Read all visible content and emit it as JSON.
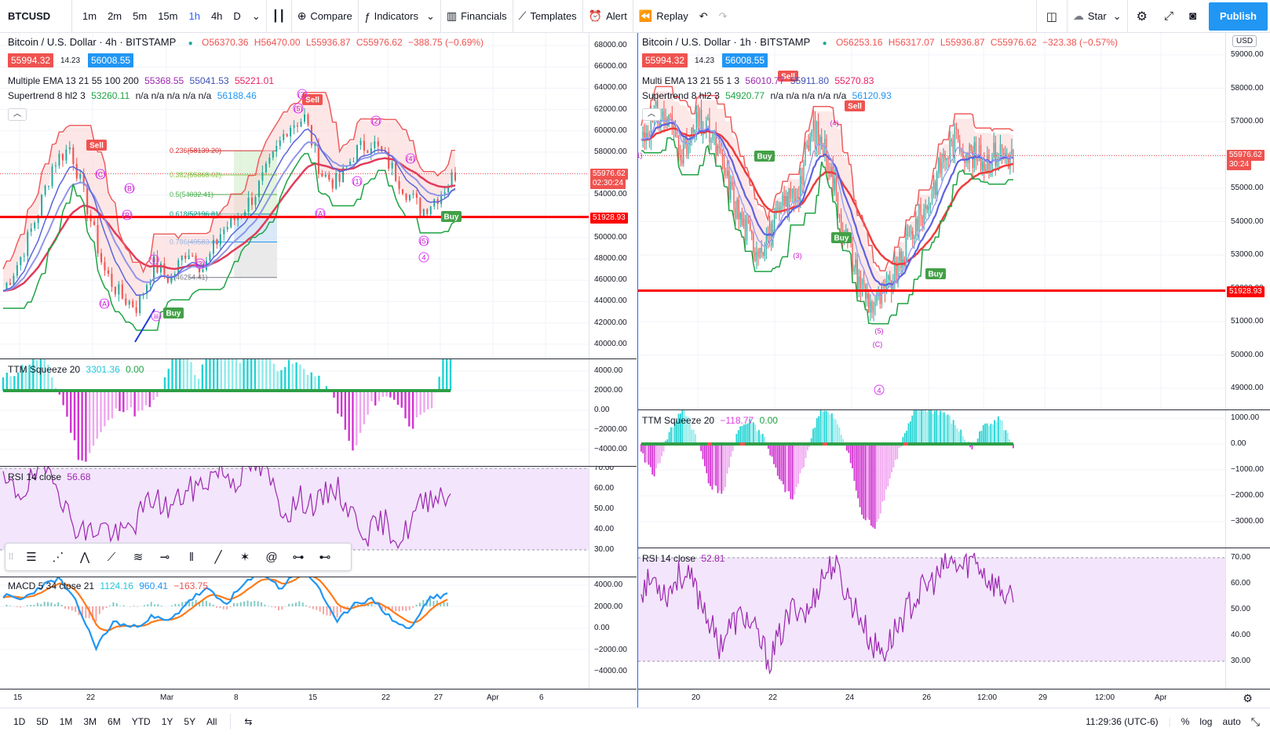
{
  "toolbar": {
    "symbol": "BTCUSD",
    "intervals": [
      "1m",
      "2m",
      "5m",
      "15m",
      "1h",
      "4h",
      "D"
    ],
    "active_interval": "1h",
    "compare": "Compare",
    "indicators": "Indicators",
    "financials": "Financials",
    "templates": "Templates",
    "alert": "Alert",
    "replay": "Replay",
    "star": "Star",
    "publish": "Publish"
  },
  "left_chart": {
    "title": "Bitcoin / U.S. Dollar · 4h · BITSTAMP",
    "ohlc": {
      "o": "O56370.36",
      "h": "H56470.00",
      "l": "L55936.87",
      "c": "C55976.62",
      "chg": "−388.75 (−0.69%)"
    },
    "bid": "55994.32",
    "spread": "14.23",
    "ask": "56008.55",
    "ema_legend": {
      "name": "Multiple EMA 13 21 55 100 200",
      "v1": "55368.55",
      "v2": "55041.53",
      "v3": "55221.01"
    },
    "st_legend": {
      "name": "Supertrend 8 hl2 3",
      "v1": "53260.11",
      "na": "n/a n/a n/a n/a n/a",
      "v2": "56188.46"
    },
    "price_axis": [
      "68000.00",
      "66000.00",
      "64000.00",
      "62000.00",
      "60000.00",
      "58000.00",
      "56000.00",
      "54000.00",
      "52000.00",
      "50000.00",
      "48000.00",
      "46000.00",
      "44000.00",
      "42000.00",
      "40000.00"
    ],
    "last_price": "55976.62",
    "countdown": "02:30:24",
    "hline_price": "51928.93",
    "fib": [
      "0.236(58139.20)",
      "0.382(55868.02)",
      "0.5(54032.41)",
      "0.618(52196.81)",
      "0.786(49583.40)",
      "1(46254.41)"
    ],
    "sell_label": "Sell",
    "buy_label": "Buy",
    "wave_labels": [
      "(C)",
      "(B)",
      "(A)",
      "(3)",
      "(B)",
      "(2)",
      "(4)",
      "(5)",
      "(1)",
      "(A)",
      "(3)",
      "ii",
      "iii",
      "(5)",
      "4"
    ],
    "ttm": {
      "name": "TTM Squeeze 20",
      "v1": "3301.36",
      "v2": "0.00",
      "axis": [
        "4000.00",
        "2000.00",
        "0.00",
        "−2000.00",
        "−4000.00"
      ]
    },
    "rsi": {
      "name": "RSI 14 close",
      "v1": "56.68",
      "axis": [
        "70.00",
        "60.00",
        "50.00",
        "40.00",
        "30.00"
      ]
    },
    "macd": {
      "name": "MACD 5 34 close 21",
      "v1": "1124.16",
      "v2": "960.41",
      "v3": "−163.75",
      "axis": [
        "4000.00",
        "2000.00",
        "0.00",
        "−2000.00",
        "−4000.00"
      ]
    },
    "time_axis": [
      "15",
      "22",
      "Mar",
      "8",
      "15",
      "22",
      "27",
      "Apr",
      "6"
    ]
  },
  "right_chart": {
    "title": "Bitcoin / U.S. Dollar · 1h · BITSTAMP",
    "ohlc": {
      "o": "O56253.16",
      "h": "H56317.07",
      "l": "L55936.87",
      "c": "C55976.62",
      "chg": "−323.38 (−0.57%)"
    },
    "bid": "55994.32",
    "spread": "14.23",
    "ask": "56008.55",
    "currency": "USD",
    "ema_legend": {
      "name": "Multi EMA 13 21 55 1 3",
      "v1": "56010.77",
      "v2": "55911.80",
      "v3": "55270.83"
    },
    "st_legend": {
      "name": "Supertrend 8 hl2 3",
      "v1": "54920.77",
      "na": "n/a n/a n/a n/a n/a",
      "v2": "56120.93"
    },
    "price_axis": [
      "59000.00",
      "58000.00",
      "57000.00",
      "56000.00",
      "55000.00",
      "54000.00",
      "53000.00",
      "52000.00",
      "51000.00",
      "50000.00",
      "49000.00"
    ],
    "last_price": "55976.62",
    "countdown": "30:24",
    "hline_price": "51928.93",
    "sell_label": "Sell",
    "buy_label": "Buy",
    "wave_labels": [
      "(1)",
      "(4)",
      "(3)",
      "(5)",
      "(C)",
      "4"
    ],
    "ttm": {
      "name": "TTM Squeeze 20",
      "v1": "−118.77",
      "v2": "0.00",
      "axis": [
        "1000.00",
        "0.00",
        "−1000.00",
        "−2000.00",
        "−3000.00"
      ]
    },
    "rsi": {
      "name": "RSI 14 close",
      "v1": "52.81",
      "axis": [
        "70.00",
        "60.00",
        "50.00",
        "40.00",
        "30.00"
      ]
    },
    "time_axis": [
      "20",
      "22",
      "24",
      "26",
      "12:00",
      "29",
      "12:00",
      "Apr"
    ]
  },
  "bottom": {
    "ranges": [
      "1D",
      "5D",
      "1M",
      "3M",
      "6M",
      "YTD",
      "1Y",
      "5Y",
      "All"
    ],
    "clock": "11:29:36 (UTC-6)",
    "percent": "%",
    "log": "log",
    "auto": "auto"
  },
  "colors": {
    "up": "#26a69a",
    "down": "#ef5350",
    "ema_red": "#e03c5a",
    "ema_blue": "#6a6ee8",
    "supertrend_green": "#1ea343",
    "supertrend_red": "#f05c5c",
    "hline": "#ff0000",
    "ttm_cyan": "#3fe0e0",
    "ttm_magenta": "#e040e0",
    "rsi": "#9c27b0",
    "macd_blue": "#2196f3",
    "macd_orange": "#ff7a1a",
    "accent": "#2196f3"
  }
}
